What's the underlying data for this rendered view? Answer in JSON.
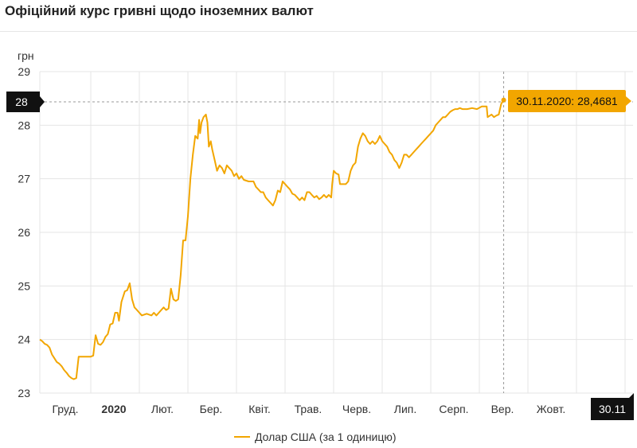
{
  "page": {
    "title": "Офіційний курс гривні щодо іноземних валют"
  },
  "chart_data": {
    "type": "line",
    "title": "Офіційний курс гривні щодо іноземних валют",
    "ylabel": "грн",
    "xlabel": "",
    "ylim": [
      23,
      29
    ],
    "yticks": [
      23,
      24,
      25,
      26,
      27,
      28,
      29
    ],
    "x_tick_labels": [
      {
        "label": "Груд.",
        "month": 0
      },
      {
        "label": "2020",
        "month": 1,
        "bold": true
      },
      {
        "label": "Лют.",
        "month": 2
      },
      {
        "label": "Бер.",
        "month": 3
      },
      {
        "label": "Квіт.",
        "month": 4
      },
      {
        "label": "Трав.",
        "month": 5
      },
      {
        "label": "Черв.",
        "month": 6
      },
      {
        "label": "Лип.",
        "month": 7
      },
      {
        "label": "Серп.",
        "month": 8
      },
      {
        "label": "Вер.",
        "month": 9
      },
      {
        "label": "Жовт.",
        "month": 10
      }
    ],
    "grid": true,
    "legend_position": "bottom",
    "colors": {
      "series": "#f2a600",
      "crosshair_box": "#111111",
      "tooltip_bg": "#f2a600"
    },
    "crosshair": {
      "y_value_label": "28",
      "x_label": "30.11"
    },
    "tooltip": {
      "text": "30.11.2020: 28,4681"
    },
    "series": [
      {
        "name": "Долар США (за 1 одиницю)",
        "points": [
          [
            0.0,
            24.0
          ],
          [
            0.05,
            23.97
          ],
          [
            0.1,
            23.92
          ],
          [
            0.15,
            23.9
          ],
          [
            0.2,
            23.85
          ],
          [
            0.25,
            23.72
          ],
          [
            0.3,
            23.65
          ],
          [
            0.35,
            23.58
          ],
          [
            0.4,
            23.55
          ],
          [
            0.45,
            23.5
          ],
          [
            0.5,
            23.43
          ],
          [
            0.55,
            23.38
          ],
          [
            0.6,
            23.32
          ],
          [
            0.65,
            23.28
          ],
          [
            0.7,
            23.26
          ],
          [
            0.75,
            23.28
          ],
          [
            0.8,
            23.68
          ],
          [
            0.85,
            23.68
          ],
          [
            0.95,
            23.68
          ],
          [
            1.05,
            23.68
          ],
          [
            1.1,
            23.7
          ],
          [
            1.15,
            24.08
          ],
          [
            1.2,
            23.92
          ],
          [
            1.25,
            23.9
          ],
          [
            1.3,
            23.95
          ],
          [
            1.35,
            24.05
          ],
          [
            1.4,
            24.1
          ],
          [
            1.45,
            24.28
          ],
          [
            1.5,
            24.3
          ],
          [
            1.55,
            24.5
          ],
          [
            1.6,
            24.5
          ],
          [
            1.63,
            24.35
          ],
          [
            1.68,
            24.7
          ],
          [
            1.75,
            24.9
          ],
          [
            1.8,
            24.92
          ],
          [
            1.85,
            25.05
          ],
          [
            1.9,
            24.75
          ],
          [
            1.95,
            24.6
          ],
          [
            2.0,
            24.55
          ],
          [
            2.05,
            24.5
          ],
          [
            2.1,
            24.45
          ],
          [
            2.2,
            24.48
          ],
          [
            2.3,
            24.45
          ],
          [
            2.35,
            24.5
          ],
          [
            2.4,
            24.45
          ],
          [
            2.45,
            24.5
          ],
          [
            2.5,
            24.55
          ],
          [
            2.55,
            24.6
          ],
          [
            2.6,
            24.55
          ],
          [
            2.65,
            24.58
          ],
          [
            2.7,
            24.95
          ],
          [
            2.75,
            24.75
          ],
          [
            2.8,
            24.72
          ],
          [
            2.85,
            24.75
          ],
          [
            2.9,
            25.2
          ],
          [
            2.95,
            25.85
          ],
          [
            3.0,
            25.85
          ],
          [
            3.05,
            26.3
          ],
          [
            3.1,
            27.0
          ],
          [
            3.15,
            27.45
          ],
          [
            3.2,
            27.8
          ],
          [
            3.25,
            27.75
          ],
          [
            3.28,
            28.1
          ],
          [
            3.3,
            27.85
          ],
          [
            3.33,
            28.05
          ],
          [
            3.37,
            28.15
          ],
          [
            3.42,
            28.2
          ],
          [
            3.45,
            28.05
          ],
          [
            3.48,
            27.6
          ],
          [
            3.52,
            27.7
          ],
          [
            3.55,
            27.55
          ],
          [
            3.6,
            27.35
          ],
          [
            3.65,
            27.15
          ],
          [
            3.7,
            27.25
          ],
          [
            3.75,
            27.2
          ],
          [
            3.8,
            27.1
          ],
          [
            3.85,
            27.25
          ],
          [
            3.9,
            27.2
          ],
          [
            3.95,
            27.15
          ],
          [
            4.0,
            27.05
          ],
          [
            4.05,
            27.1
          ],
          [
            4.1,
            27.0
          ],
          [
            4.15,
            27.05
          ],
          [
            4.2,
            26.98
          ],
          [
            4.3,
            26.95
          ],
          [
            4.4,
            26.95
          ],
          [
            4.45,
            26.85
          ],
          [
            4.5,
            26.8
          ],
          [
            4.55,
            26.75
          ],
          [
            4.6,
            26.75
          ],
          [
            4.65,
            26.65
          ],
          [
            4.7,
            26.6
          ],
          [
            4.75,
            26.55
          ],
          [
            4.8,
            26.5
          ],
          [
            4.85,
            26.6
          ],
          [
            4.9,
            26.78
          ],
          [
            4.95,
            26.75
          ],
          [
            5.0,
            26.95
          ],
          [
            5.05,
            26.9
          ],
          [
            5.1,
            26.85
          ],
          [
            5.15,
            26.8
          ],
          [
            5.2,
            26.72
          ],
          [
            5.25,
            26.7
          ],
          [
            5.3,
            26.65
          ],
          [
            5.35,
            26.6
          ],
          [
            5.4,
            26.65
          ],
          [
            5.45,
            26.6
          ],
          [
            5.5,
            26.75
          ],
          [
            5.55,
            26.75
          ],
          [
            5.6,
            26.7
          ],
          [
            5.65,
            26.65
          ],
          [
            5.7,
            26.68
          ],
          [
            5.75,
            26.62
          ],
          [
            5.8,
            26.65
          ],
          [
            5.85,
            26.7
          ],
          [
            5.9,
            26.65
          ],
          [
            5.95,
            26.7
          ],
          [
            6.0,
            26.65
          ],
          [
            6.02,
            26.9
          ],
          [
            6.05,
            27.15
          ],
          [
            6.1,
            27.1
          ],
          [
            6.15,
            27.08
          ],
          [
            6.18,
            26.9
          ],
          [
            6.3,
            26.9
          ],
          [
            6.35,
            26.95
          ],
          [
            6.4,
            27.15
          ],
          [
            6.45,
            27.25
          ],
          [
            6.5,
            27.3
          ],
          [
            6.55,
            27.6
          ],
          [
            6.6,
            27.75
          ],
          [
            6.65,
            27.85
          ],
          [
            6.7,
            27.8
          ],
          [
            6.75,
            27.7
          ],
          [
            6.8,
            27.65
          ],
          [
            6.85,
            27.7
          ],
          [
            6.9,
            27.65
          ],
          [
            6.95,
            27.7
          ],
          [
            7.0,
            27.8
          ],
          [
            7.05,
            27.7
          ],
          [
            7.1,
            27.65
          ],
          [
            7.15,
            27.6
          ],
          [
            7.2,
            27.5
          ],
          [
            7.25,
            27.45
          ],
          [
            7.3,
            27.35
          ],
          [
            7.35,
            27.3
          ],
          [
            7.4,
            27.2
          ],
          [
            7.45,
            27.3
          ],
          [
            7.5,
            27.45
          ],
          [
            7.55,
            27.45
          ],
          [
            7.6,
            27.4
          ],
          [
            7.65,
            27.45
          ],
          [
            7.7,
            27.5
          ],
          [
            7.75,
            27.55
          ],
          [
            7.8,
            27.6
          ],
          [
            7.85,
            27.65
          ],
          [
            7.9,
            27.7
          ],
          [
            7.95,
            27.75
          ],
          [
            8.0,
            27.8
          ],
          [
            8.05,
            27.85
          ],
          [
            8.1,
            27.9
          ],
          [
            8.15,
            28.0
          ],
          [
            8.2,
            28.05
          ],
          [
            8.25,
            28.1
          ],
          [
            8.3,
            28.15
          ],
          [
            8.35,
            28.15
          ],
          [
            8.4,
            28.2
          ],
          [
            8.45,
            28.25
          ],
          [
            8.5,
            28.28
          ],
          [
            8.55,
            28.3
          ],
          [
            8.6,
            28.3
          ],
          [
            8.65,
            28.32
          ],
          [
            8.7,
            28.3
          ],
          [
            8.8,
            28.3
          ],
          [
            8.9,
            28.32
          ],
          [
            9.0,
            28.3
          ],
          [
            9.1,
            28.35
          ],
          [
            9.2,
            28.35
          ],
          [
            9.22,
            28.15
          ],
          [
            9.3,
            28.2
          ],
          [
            9.35,
            28.15
          ],
          [
            9.4,
            28.18
          ],
          [
            9.45,
            28.2
          ],
          [
            9.5,
            28.4
          ],
          [
            9.55,
            28.47
          ]
        ]
      }
    ]
  }
}
